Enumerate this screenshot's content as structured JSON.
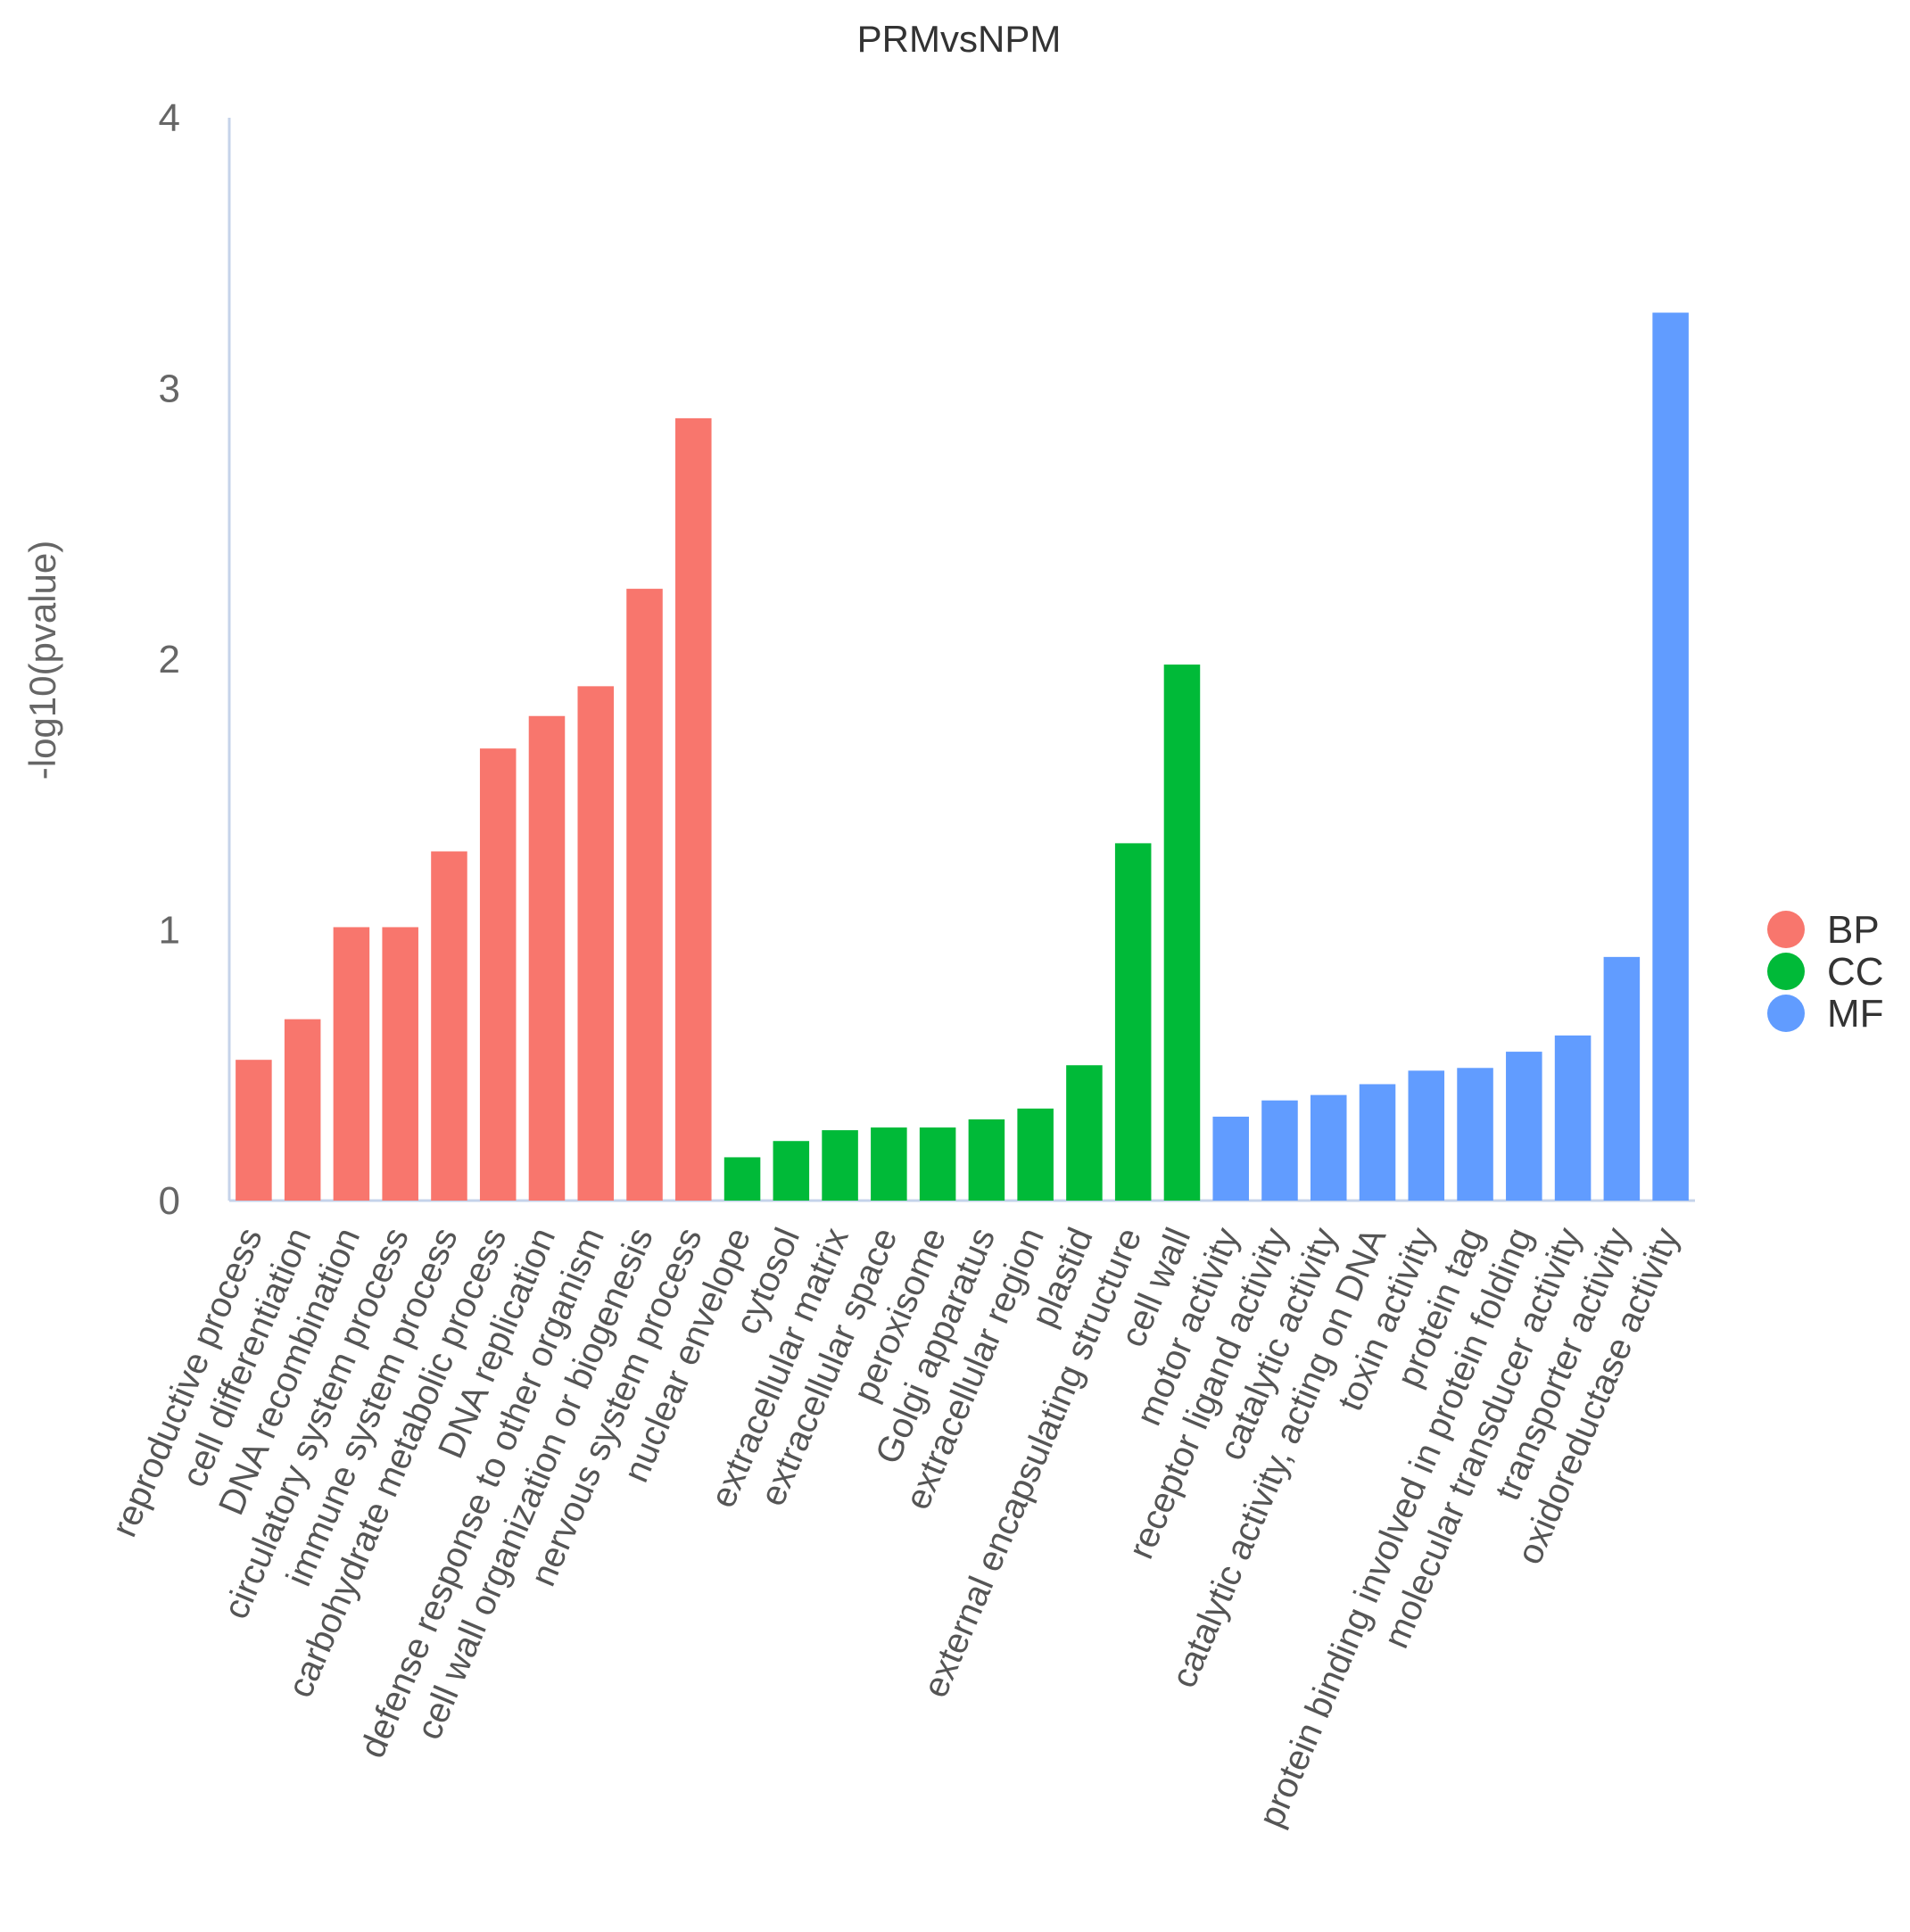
{
  "chart_data": {
    "type": "bar",
    "title": "PRMvsNPM",
    "xlabel": "",
    "ylabel": "-log10(pvalue)",
    "ylim": [
      0,
      4
    ],
    "yticks": [
      "0",
      "1",
      "2",
      "3",
      "4"
    ],
    "grid": false,
    "legend_position": "right",
    "groups": [
      {
        "name": "BP",
        "color": "#f8766d"
      },
      {
        "name": "CC",
        "color": "#00ba38"
      },
      {
        "name": "MF",
        "color": "#619cff"
      }
    ],
    "categories": [
      "reproductive process",
      "cell differentiation",
      "DNA recombination",
      "circulatory system process",
      "immune system process",
      "carbohydrate metabolic process",
      "DNA replication",
      "defense response to other organism",
      "cell wall organization or biogenesis",
      "nervous system process",
      "nuclear envelope",
      "cytosol",
      "extracellular matrix",
      "extracellular space",
      "peroxisome",
      "Golgi apparatus",
      "extracellular region",
      "plastid",
      "external encapsulating structure",
      "cell wall",
      "motor activity",
      "receptor ligand activity",
      "catalytic activity",
      "catalytic activity, acting on DNA",
      "toxin activity",
      "protein tag",
      "protein binding involved in protein folding",
      "molecular transducer activity",
      "transporter activity",
      "oxidoreductase activity"
    ],
    "values": [
      0.52,
      0.67,
      1.01,
      1.01,
      1.29,
      1.67,
      1.79,
      1.9,
      2.26,
      2.89,
      0.16,
      0.22,
      0.26,
      0.27,
      0.27,
      0.3,
      0.34,
      0.5,
      1.32,
      1.98,
      0.31,
      0.37,
      0.39,
      0.43,
      0.48,
      0.49,
      0.55,
      0.61,
      0.9,
      3.28
    ],
    "group_of": [
      "BP",
      "BP",
      "BP",
      "BP",
      "BP",
      "BP",
      "BP",
      "BP",
      "BP",
      "BP",
      "CC",
      "CC",
      "CC",
      "CC",
      "CC",
      "CC",
      "CC",
      "CC",
      "CC",
      "CC",
      "MF",
      "MF",
      "MF",
      "MF",
      "MF",
      "MF",
      "MF",
      "MF",
      "MF",
      "MF"
    ]
  }
}
